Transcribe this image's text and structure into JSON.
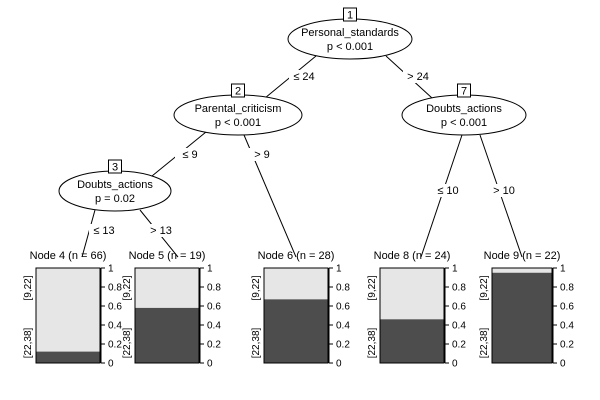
{
  "colors": {
    "upper": "#e6e6e6",
    "lower": "#4d4d4d",
    "line": "#000000",
    "background": "#ffffff"
  },
  "inner_nodes": [
    {
      "id": "1",
      "variable": "Personal_standards",
      "p": "p < 0.001"
    },
    {
      "id": "2",
      "variable": "Parental_criticism",
      "p": "p < 0.001"
    },
    {
      "id": "3",
      "variable": "Doubts_actions",
      "p": "p = 0.02"
    },
    {
      "id": "7",
      "variable": "Doubts_actions",
      "p": "p < 0.001"
    }
  ],
  "edges": [
    {
      "from": "1",
      "to": "2",
      "label": "≤ 24"
    },
    {
      "from": "1",
      "to": "7",
      "label": "> 24"
    },
    {
      "from": "2",
      "to": "3",
      "label": "≤ 9"
    },
    {
      "from": "2",
      "to": "6",
      "label": "> 9"
    },
    {
      "from": "3",
      "to": "4",
      "label": "≤ 13"
    },
    {
      "from": "3",
      "to": "5",
      "label": "> 13"
    },
    {
      "from": "7",
      "to": "8",
      "label": "≤ 10"
    },
    {
      "from": "7",
      "to": "9",
      "label": "> 10"
    }
  ],
  "terminal_nodes": [
    {
      "id": "4",
      "title": "Node 4 (n = 66)",
      "upper_fraction": 0.88,
      "lower_fraction": 0.12
    },
    {
      "id": "5",
      "title": "Node 5 (n = 19)",
      "upper_fraction": 0.42,
      "lower_fraction": 0.58
    },
    {
      "id": "6",
      "title": "Node 6 (n = 28)",
      "upper_fraction": 0.33,
      "lower_fraction": 0.67
    },
    {
      "id": "8",
      "title": "Node 8 (n = 24)",
      "upper_fraction": 0.54,
      "lower_fraction": 0.46
    },
    {
      "id": "9",
      "title": "Node 9 (n = 22)",
      "upper_fraction": 0.05,
      "lower_fraction": 0.95
    }
  ],
  "class_labels": {
    "upper": "[9,22]",
    "lower": "[22,38]"
  },
  "axis": {
    "ticks": [
      "0",
      "0.2",
      "0.4",
      "0.6",
      "0.8",
      "1"
    ]
  }
}
